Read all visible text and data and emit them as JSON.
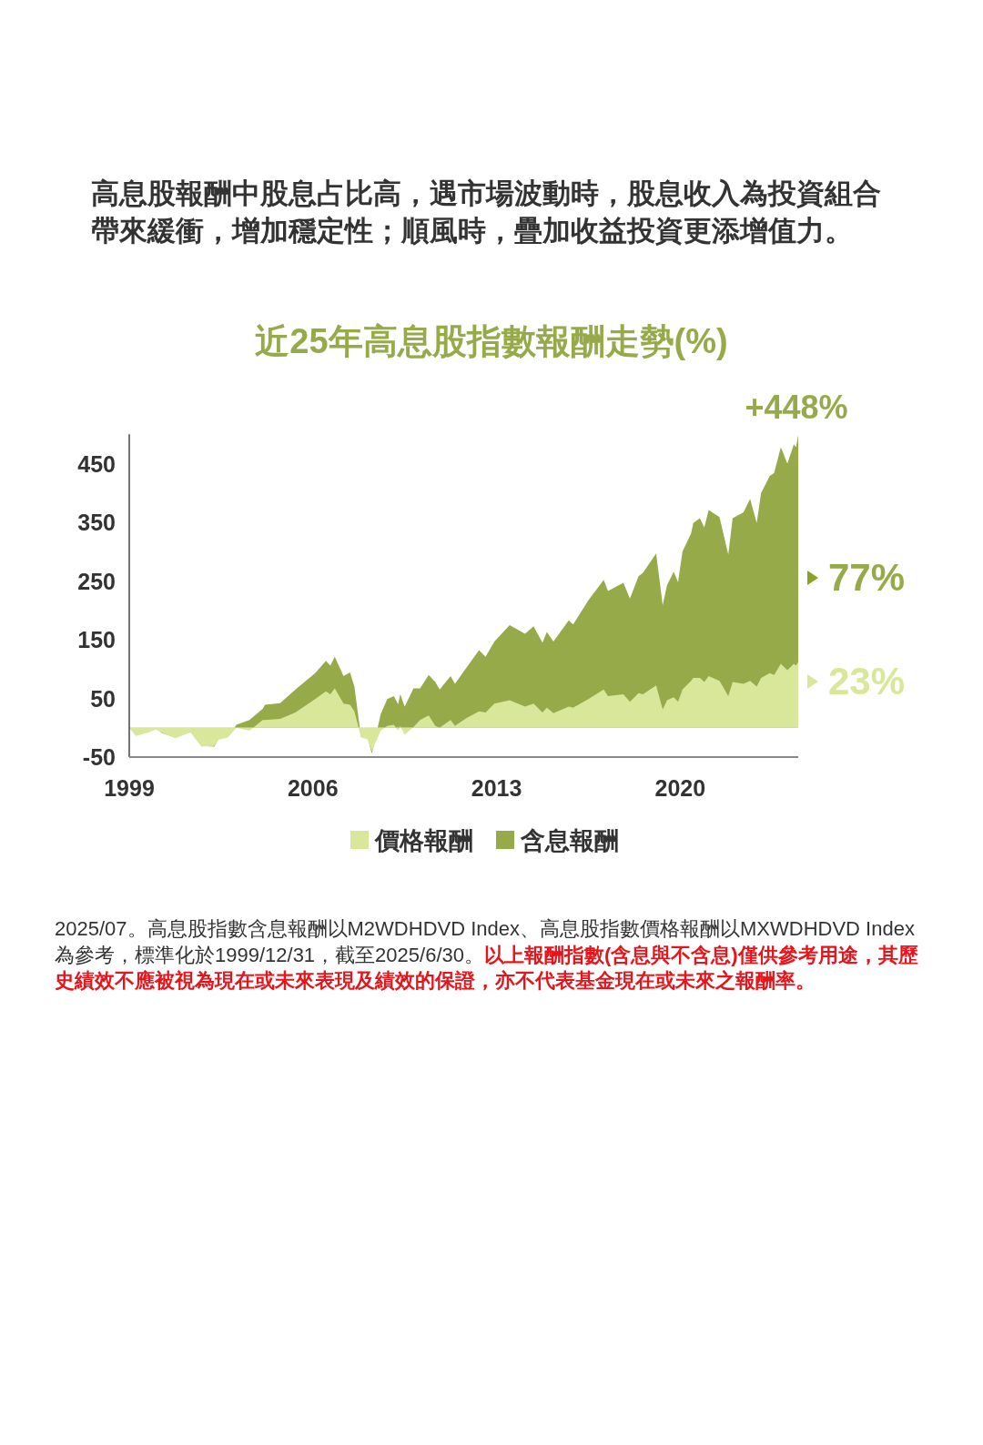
{
  "chart_data": {
    "type": "area",
    "subtitle": "高息股報酬中股息占比高，遇市場波動時，股息收入為投資組合帶來緩衝，增加穩定性；順風時，疊加收益投資更添增值力。",
    "title": "近25年高息股指數報酬走勢(%)",
    "x": [
      "1999-12",
      "2000-03",
      "2000-08",
      "2000-12",
      "2001-03",
      "2001-09",
      "2002-04",
      "2002-09",
      "2003-03",
      "2003-05",
      "2003-09",
      "2004-01",
      "2004-07",
      "2005-01",
      "2005-02",
      "2005-09",
      "2006-04",
      "2007-01",
      "2007-06",
      "2007-08",
      "2007-10",
      "2008-02",
      "2008-05",
      "2008-07",
      "2008-10",
      "2009-01",
      "2009-03",
      "2009-07",
      "2009-10",
      "2010-01",
      "2010-03",
      "2010-04",
      "2010-06",
      "2010-10",
      "2011-01",
      "2011-05",
      "2011-08",
      "2011-10",
      "2012-03",
      "2012-05",
      "2012-10",
      "2013-04",
      "2013-07",
      "2013-11",
      "2014-06",
      "2015-01",
      "2015-05",
      "2015-09",
      "2015-11",
      "2016-02",
      "2016-09",
      "2016-11",
      "2017-06",
      "2018-01",
      "2018-03",
      "2018-10",
      "2019-01",
      "2019-05",
      "2019-07",
      "2020-01",
      "2020-04",
      "2020-06",
      "2020-09",
      "2020-11",
      "2021-01",
      "2021-05",
      "2021-06",
      "2021-09",
      "2021-11",
      "2022-01",
      "2022-06",
      "2022-10",
      "2022-12",
      "2023-05",
      "2023-08",
      "2023-11",
      "2024-01",
      "2024-05",
      "2024-07",
      "2024-10",
      "2025-01",
      "2025-04",
      "2025-05",
      "2025-06"
    ],
    "series": [
      {
        "name": "價格報酬",
        "color": "#d9e79b",
        "values": [
          0,
          -14,
          -9,
          -3,
          -8,
          -18,
          -8,
          -32,
          -31,
          -20,
          -17,
          0,
          -5,
          13,
          13,
          15,
          26,
          49,
          62,
          57,
          67,
          41,
          39,
          28,
          -16,
          -20,
          -40,
          -5,
          3,
          5,
          -5,
          3,
          -12,
          1,
          13,
          21,
          3,
          0,
          13,
          3,
          16,
          28,
          26,
          41,
          47,
          36,
          41,
          26,
          34,
          25,
          36,
          34,
          49,
          65,
          54,
          57,
          44,
          59,
          57,
          72,
          31,
          47,
          52,
          44,
          65,
          80,
          85,
          85,
          78,
          88,
          80,
          54,
          78,
          75,
          80,
          70,
          85,
          93,
          90,
          109,
          98,
          109,
          106,
          112
        ]
      },
      {
        "name": "含息報酬",
        "color": "#97aa4a",
        "values": [
          -2,
          -5,
          -8,
          0,
          -9,
          -17,
          -4,
          -31,
          -32,
          -18,
          -16,
          5,
          13,
          32,
          39,
          42,
          65,
          93,
          114,
          106,
          121,
          88,
          94,
          70,
          -16,
          -18,
          -44,
          23,
          49,
          54,
          40,
          57,
          36,
          67,
          67,
          90,
          78,
          65,
          88,
          75,
          101,
          132,
          121,
          147,
          175,
          160,
          173,
          145,
          163,
          147,
          183,
          176,
          217,
          252,
          233,
          247,
          220,
          258,
          264,
          297,
          209,
          243,
          266,
          248,
          300,
          331,
          349,
          357,
          341,
          371,
          359,
          295,
          357,
          367,
          390,
          349,
          400,
          429,
          434,
          478,
          450,
          483,
          478,
          499
        ]
      }
    ],
    "xlim": [
      "1999-12",
      "2025-06"
    ],
    "xticks": [
      {
        "value": "1999-12",
        "label": "1999"
      },
      {
        "value": "2006-12",
        "label": "2006"
      },
      {
        "value": "2013-12",
        "label": "2013"
      },
      {
        "value": "2020-12",
        "label": "2020"
      }
    ],
    "ylim": [
      -50,
      500
    ],
    "yticks": [
      -50,
      50,
      150,
      250,
      350,
      450
    ],
    "grid": false,
    "legend": "bottom",
    "annotations": [
      "+448%",
      "77%",
      "23%",
      "2025/07。高息股指數含息報酬以M2WDHDVD Index、高息股指數價格報酬以MXWDHDVD Index為參考，標準化於1999/12/31，截至2025/6/30。",
      "以上報酬指數(含息與不含息)僅供參考用途，其歷史績效不應被視為現在或未來表現及績效的保證，亦不代表基金現在或未來之報酬率。"
    ]
  }
}
